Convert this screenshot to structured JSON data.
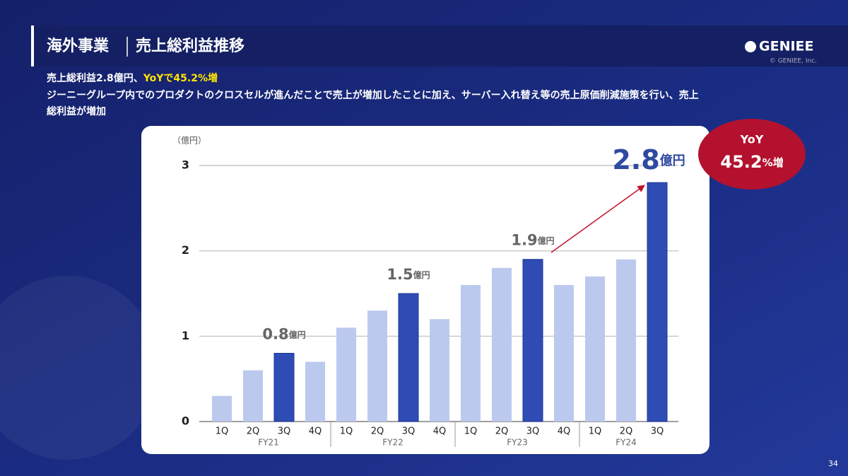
{
  "header": {
    "title": "海外事業",
    "subtitle": "売上総利益推移"
  },
  "logo": {
    "name": "GENIEE",
    "copyright": "© GENIEE, Inc."
  },
  "summary": {
    "lead": "売上総利益2.8億円、",
    "highlight": "YoYで45.2%増",
    "body": [
      "ジーニーグループ内でのプロダクトのクロスセルが進んだことで売上が増加したことに加え、サーバー入れ替え等の売上原価削減施策を行い、売上",
      "総利益が増加"
    ]
  },
  "badge": {
    "label": "YoY",
    "value": "45.2%増"
  },
  "page_number": "34",
  "chart_data": {
    "type": "bar",
    "y_unit": "（億円）",
    "categories": [
      "1Q",
      "2Q",
      "3Q",
      "4Q",
      "1Q",
      "2Q",
      "3Q",
      "4Q",
      "1Q",
      "2Q",
      "3Q",
      "4Q",
      "1Q",
      "2Q",
      "3Q"
    ],
    "category_groups": [
      "FY21",
      "FY21",
      "FY21",
      "FY21",
      "FY22",
      "FY22",
      "FY22",
      "FY22",
      "FY23",
      "FY23",
      "FY23",
      "FY23",
      "FY24",
      "FY24",
      "FY24"
    ],
    "values": [
      0.3,
      0.6,
      0.8,
      0.7,
      1.1,
      1.3,
      1.5,
      1.2,
      1.6,
      1.8,
      1.9,
      1.6,
      1.7,
      1.9,
      2.8
    ],
    "value_labels": [
      null,
      null,
      "0.8億円",
      null,
      null,
      null,
      "1.5億円",
      null,
      null,
      null,
      "1.9億円",
      null,
      null,
      null,
      "2.8億円"
    ],
    "colors": [
      "#bcc9ee",
      "#bcc9ee",
      "#2f4cb5",
      "#bcc9ee",
      "#bcc9ee",
      "#bcc9ee",
      "#2f4cb5",
      "#bcc9ee",
      "#bcc9ee",
      "#bcc9ee",
      "#2f4cb5",
      "#bcc9ee",
      "#bcc9ee",
      "#bcc9ee",
      "#2f4cb5"
    ],
    "ylim": [
      0,
      3
    ],
    "yticks": [
      0,
      1,
      2,
      3
    ],
    "grid": true
  }
}
